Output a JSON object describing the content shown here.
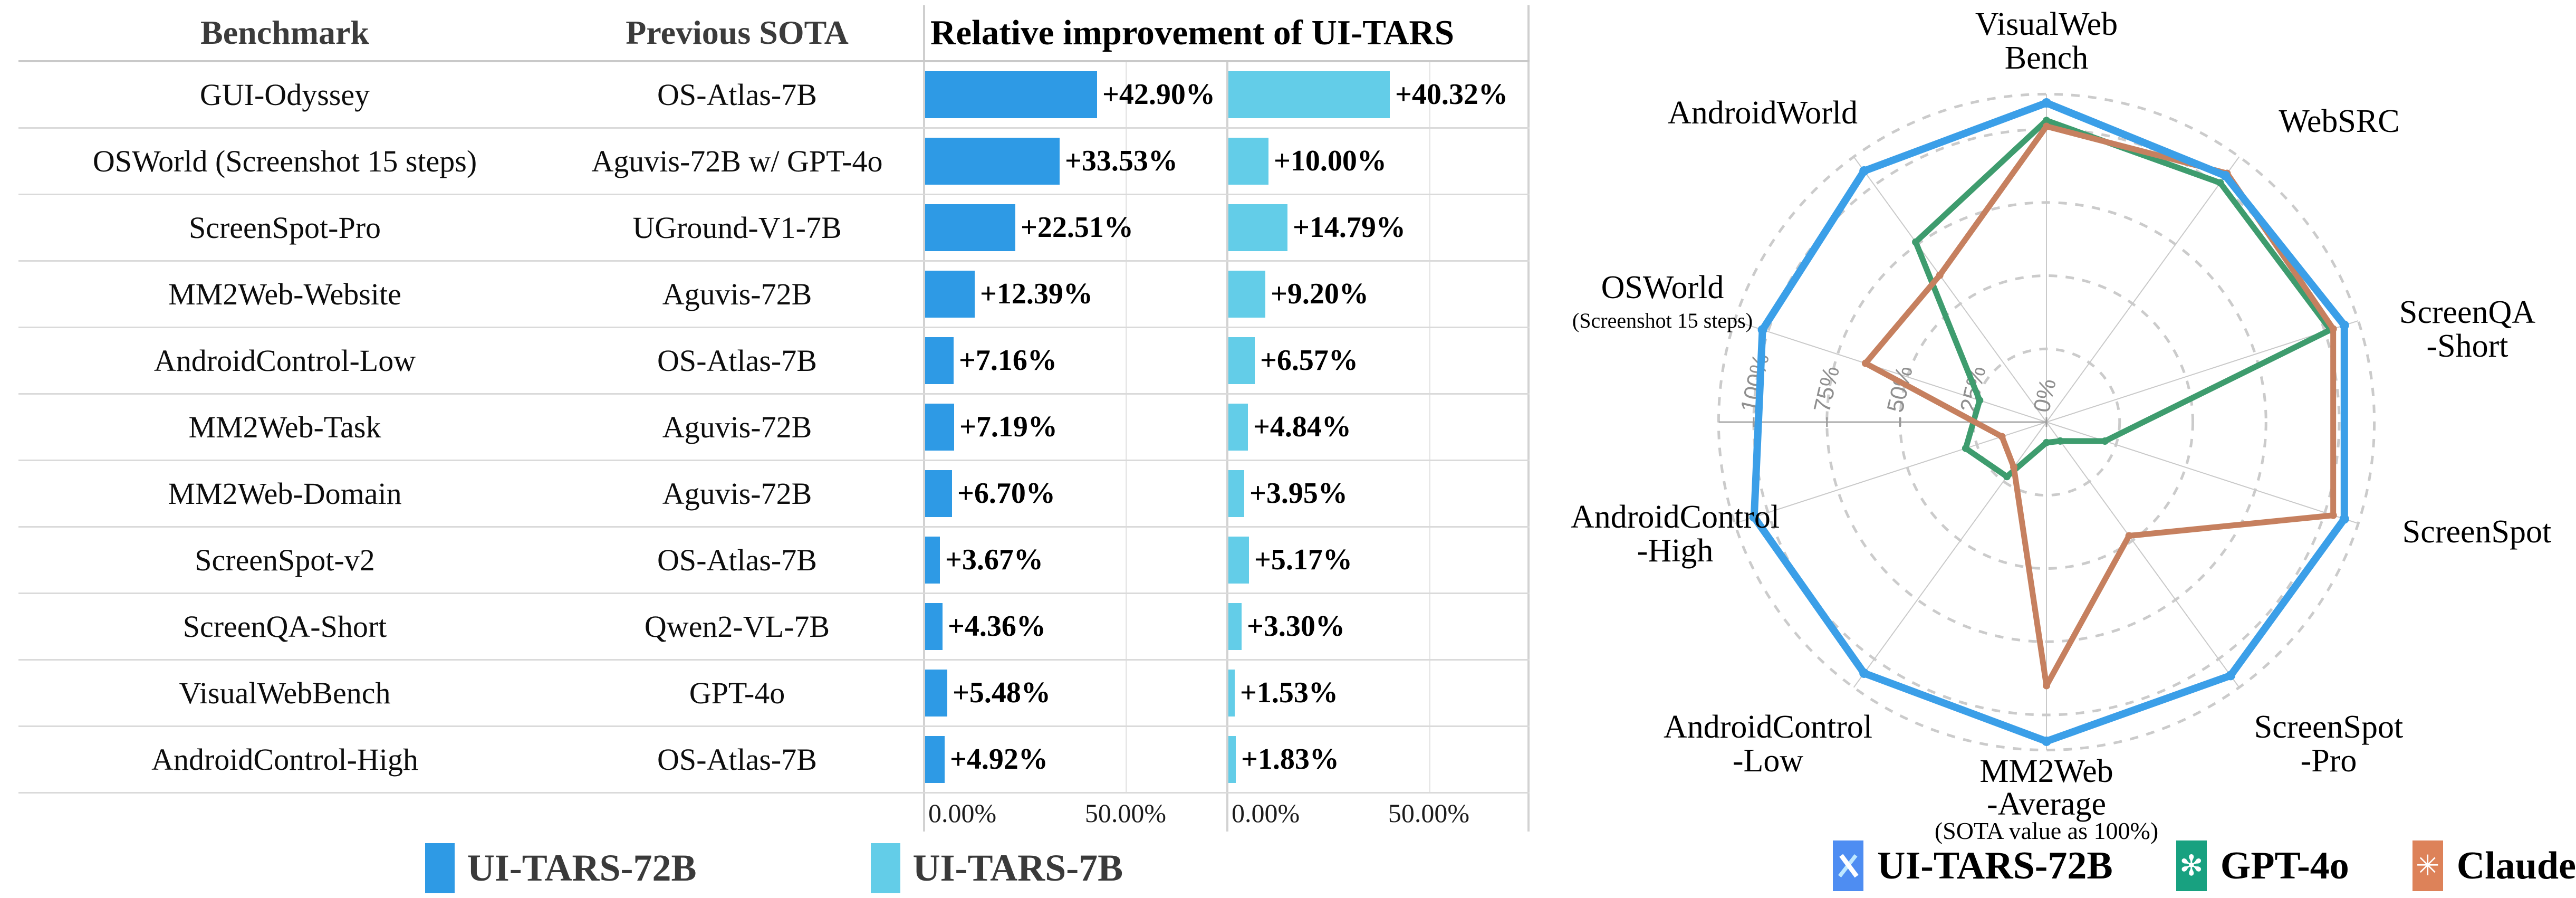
{
  "chart_data": [
    {
      "type": "bar",
      "title": "Relative improvement of UI-TARS",
      "col_headers": [
        "Benchmark",
        "Previous SOTA"
      ],
      "axis_ticks": [
        "0.00%",
        "50.00%"
      ],
      "xlim": [
        0,
        75
      ],
      "legend": [
        {
          "name": "UI-TARS-72B",
          "color": "#2E9AE5"
        },
        {
          "name": "UI-TARS-7B",
          "color": "#63CDE8"
        }
      ],
      "rows": [
        {
          "benchmark": "GUI-Odyssey",
          "previous_sota": "OS-Atlas-7B",
          "uitars72b": 42.9,
          "uitars72b_label": "+42.90%",
          "uitars7b": 40.32,
          "uitars7b_label": "+40.32%"
        },
        {
          "benchmark": "OSWorld (Screenshot 15 steps)",
          "previous_sota": "Aguvis-72B w/ GPT-4o",
          "uitars72b": 33.53,
          "uitars72b_label": "+33.53%",
          "uitars7b": 10.0,
          "uitars7b_label": "+10.00%"
        },
        {
          "benchmark": "ScreenSpot-Pro",
          "previous_sota": "UGround-V1-7B",
          "uitars72b": 22.51,
          "uitars72b_label": "+22.51%",
          "uitars7b": 14.79,
          "uitars7b_label": "+14.79%"
        },
        {
          "benchmark": "MM2Web-Website",
          "previous_sota": "Aguvis-72B",
          "uitars72b": 12.39,
          "uitars72b_label": "+12.39%",
          "uitars7b": 9.2,
          "uitars7b_label": "+9.20%"
        },
        {
          "benchmark": "AndroidControl-Low",
          "previous_sota": "OS-Atlas-7B",
          "uitars72b": 7.16,
          "uitars72b_label": "+7.16%",
          "uitars7b": 6.57,
          "uitars7b_label": "+6.57%"
        },
        {
          "benchmark": "MM2Web-Task",
          "previous_sota": "Aguvis-72B",
          "uitars72b": 7.19,
          "uitars72b_label": "+7.19%",
          "uitars7b": 4.84,
          "uitars7b_label": "+4.84%"
        },
        {
          "benchmark": "MM2Web-Domain",
          "previous_sota": "Aguvis-72B",
          "uitars72b": 6.7,
          "uitars72b_label": "+6.70%",
          "uitars7b": 3.95,
          "uitars7b_label": "+3.95%"
        },
        {
          "benchmark": "ScreenSpot-v2",
          "previous_sota": "OS-Atlas-7B",
          "uitars72b": 3.67,
          "uitars72b_label": "+3.67%",
          "uitars7b": 5.17,
          "uitars7b_label": "+5.17%"
        },
        {
          "benchmark": "ScreenQA-Short",
          "previous_sota": "Qwen2-VL-7B",
          "uitars72b": 4.36,
          "uitars72b_label": "+4.36%",
          "uitars7b": 3.3,
          "uitars7b_label": "+3.30%"
        },
        {
          "benchmark": "VisualWebBench",
          "previous_sota": "GPT-4o",
          "uitars72b": 5.48,
          "uitars72b_label": "+5.48%",
          "uitars7b": 1.53,
          "uitars7b_label": "+1.53%"
        },
        {
          "benchmark": "AndroidControl-High",
          "previous_sota": "OS-Atlas-7B",
          "uitars72b": 4.92,
          "uitars72b_label": "+4.92%",
          "uitars7b": 1.83,
          "uitars7b_label": "+1.83%"
        }
      ]
    },
    {
      "type": "radar",
      "note": "(SOTA value as 100%)",
      "rings": [
        25,
        50,
        75,
        100,
        112
      ],
      "tick_percents": [
        0,
        25,
        50,
        75,
        100
      ],
      "tick_labels": [
        "0%",
        "25%",
        "50%",
        "75%",
        "100%"
      ],
      "rmax": 115,
      "categories": [
        {
          "name": "VisualWebBench",
          "lines": [
            "VisualWeb",
            "Bench"
          ]
        },
        {
          "name": "WebSRC",
          "lines": [
            "WebSRC"
          ]
        },
        {
          "name": "ScreenQA-Short",
          "lines": [
            "ScreenQA",
            "-Short"
          ]
        },
        {
          "name": "ScreenSpot",
          "lines": [
            "ScreenSpot"
          ]
        },
        {
          "name": "ScreenSpot-Pro",
          "lines": [
            "ScreenSpot",
            "-Pro"
          ]
        },
        {
          "name": "MM2Web-Average",
          "lines": [
            "MM2Web",
            "-Average"
          ]
        },
        {
          "name": "AndroidControl-Low",
          "lines": [
            "AndroidControl",
            "-Low"
          ]
        },
        {
          "name": "AndroidControl-High",
          "lines": [
            "AndroidControl",
            "-High"
          ]
        },
        {
          "name": "OSWorld (Screenshot 15 steps)",
          "lines": [
            "OSWorld"
          ],
          "sub": "(Screenshot 15 steps)"
        },
        {
          "name": "AndroidWorld",
          "lines": [
            "AndroidWorld"
          ]
        }
      ],
      "series": [
        {
          "name": "UI-TARS-72B",
          "color": "#3B9FE8",
          "icon_color": "#4E8DF2",
          "values": [
            109,
            104,
            107,
            107,
            107,
            109,
            106,
            105,
            102,
            106
          ]
        },
        {
          "name": "GPT-4o",
          "color": "#3E9C6E",
          "icon_color": "#18A180",
          "values": [
            103,
            101,
            102,
            21,
            8,
            7,
            23,
            29,
            24,
            76
          ]
        },
        {
          "name": "Claude",
          "color": "#C6805F",
          "icon_color": "#DD8259",
          "values": [
            101,
            105,
            103,
            103,
            48,
            90,
            19,
            16,
            65,
            62
          ]
        }
      ]
    }
  ]
}
